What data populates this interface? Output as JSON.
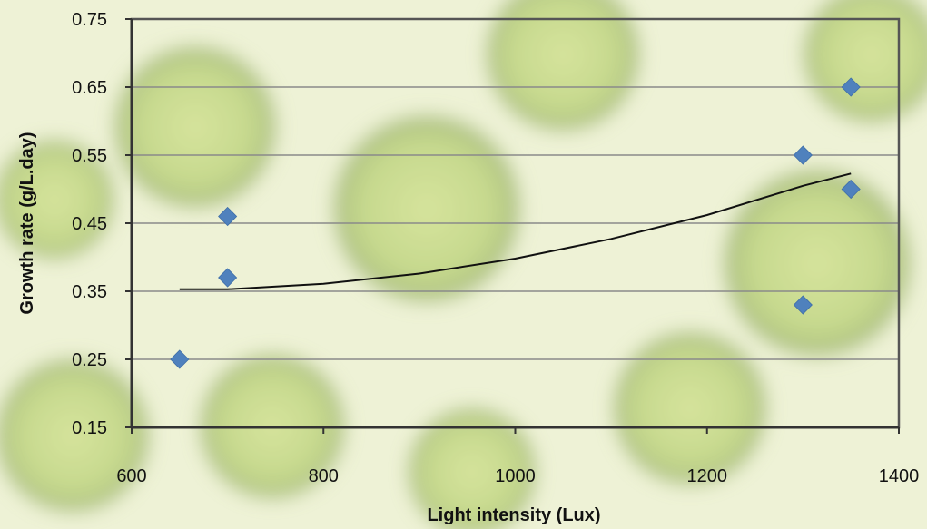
{
  "chart_data": {
    "type": "scatter",
    "title": "",
    "xlabel": "Light intensity (Lux)",
    "ylabel": "Growth rate (g/L.day)",
    "xlim": [
      600,
      1400
    ],
    "ylim": [
      0.15,
      0.75
    ],
    "x_ticks": [
      600,
      800,
      1000,
      1200,
      1400
    ],
    "y_ticks": [
      0.15,
      0.25,
      0.35,
      0.45,
      0.55,
      0.65,
      0.75
    ],
    "y_tick_labels": [
      "0.15",
      "0.25",
      "0.35",
      "0.45",
      "0.55",
      "0.65",
      "0.75"
    ],
    "grid": "horizontal",
    "legend": "none",
    "series": [
      {
        "marker": "diamond",
        "color": "#4f81bd",
        "points": [
          {
            "x": 650,
            "y": 0.25
          },
          {
            "x": 700,
            "y": 0.46
          },
          {
            "x": 700,
            "y": 0.37
          },
          {
            "x": 1300,
            "y": 0.55
          },
          {
            "x": 1300,
            "y": 0.33
          },
          {
            "x": 1350,
            "y": 0.65
          },
          {
            "x": 1350,
            "y": 0.5
          }
        ]
      }
    ],
    "trendline": {
      "type": "polynomial",
      "color": "#111111",
      "points": [
        {
          "x": 650,
          "y": 0.353
        },
        {
          "x": 700,
          "y": 0.353
        },
        {
          "x": 800,
          "y": 0.361
        },
        {
          "x": 900,
          "y": 0.376
        },
        {
          "x": 1000,
          "y": 0.398
        },
        {
          "x": 1100,
          "y": 0.427
        },
        {
          "x": 1200,
          "y": 0.462
        },
        {
          "x": 1300,
          "y": 0.505
        },
        {
          "x": 1350,
          "y": 0.523
        }
      ]
    }
  }
}
